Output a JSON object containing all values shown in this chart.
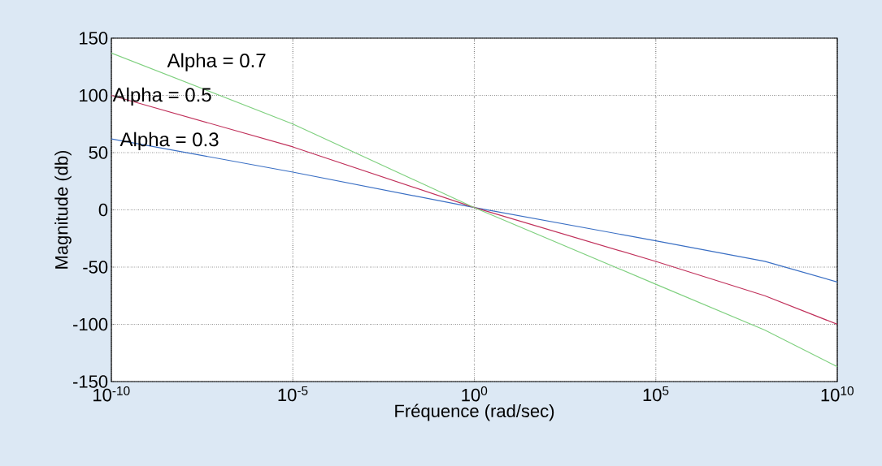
{
  "chart_data": {
    "type": "line",
    "xlabel": "Fréquence (rad/sec)",
    "ylabel": "Magnitude (db)",
    "log": "x",
    "xlim": [
      1e-10,
      10000000000.0
    ],
    "xticks": [
      {
        "value": 1e-10,
        "label": "10$^{-10}$"
      },
      {
        "value": 1e-05,
        "label": "10$^{-5}$"
      },
      {
        "value": 1,
        "label": "10$^{0}$"
      },
      {
        "value": 100000.0,
        "label": "10$^{5}$"
      },
      {
        "value": 10000000000.0,
        "label": "10$^{10}$"
      }
    ],
    "ylim": [
      -150,
      150
    ],
    "yticks": [
      -150,
      -100,
      -50,
      0,
      50,
      100,
      150
    ],
    "grid": true,
    "line_style": "solid",
    "marker": "none",
    "x": [
      1e-10,
      1e-05,
      1,
      100000.0,
      100000000.0,
      10000000000.0
    ],
    "series": [
      {
        "color": "#3a6fc4",
        "values": [
          62,
          33,
          2,
          -27,
          -45,
          -63
        ]
      },
      {
        "color": "#c0305a",
        "values": [
          100,
          55,
          2,
          -45,
          -75,
          -100
        ]
      },
      {
        "color": "#7fd07f",
        "values": [
          137,
          75,
          2,
          -65,
          -105,
          -137
        ]
      }
    ],
    "annotations": [
      "Alpha = 0.7",
      "Alpha = 0.5",
      "Alpha = 0.3"
    ]
  }
}
